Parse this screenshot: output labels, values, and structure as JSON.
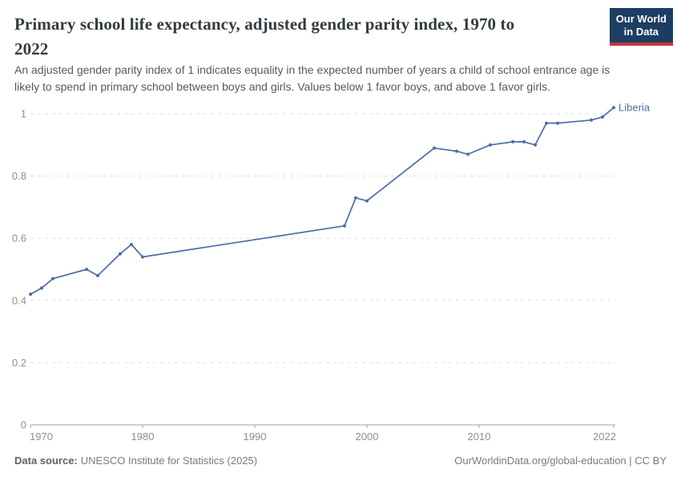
{
  "header": {
    "title_lines": [
      "Primary school life expectancy, adjusted gender parity index, 1970 to",
      "2022"
    ],
    "subtitle_lines": [
      "An adjusted gender parity index of 1 indicates equality in the expected number of years a child of school entrance age is",
      "likely to spend in primary school between boys and girls. Values below 1 favor boys, and above 1 favor girls."
    ],
    "logo": {
      "line1": "Our World",
      "line2": "in Data",
      "bg_color": "#1d3d63",
      "accent_color": "#c0363c"
    }
  },
  "footer": {
    "source_label": "Data source:",
    "source_text": "UNESCO Institute for Statistics (2025)",
    "credit": "OurWorldinData.org/global-education | CC BY"
  },
  "chart_data": {
    "type": "line",
    "title": "Primary school life expectancy, adjusted gender parity index, 1970 to 2022",
    "xlabel": "",
    "ylabel": "",
    "xlim": [
      1970,
      2022
    ],
    "ylim": [
      0,
      1.03
    ],
    "x_ticks": [
      1970,
      1980,
      1990,
      2000,
      2010,
      2022
    ],
    "y_ticks": [
      0,
      0.2,
      0.4,
      0.6,
      0.8,
      1
    ],
    "grid": "horizontal-dashed",
    "legend_position": "line-end-label",
    "colors": {
      "line": "#4c6cac",
      "grid": "#dedede",
      "axis": "#a1a1a1",
      "tick_text": "#8f8f8f"
    },
    "series": [
      {
        "name": "Liberia",
        "color": "#4c6cac",
        "points": [
          [
            1970,
            0.42
          ],
          [
            1971,
            0.44
          ],
          [
            1972,
            0.47
          ],
          [
            1975,
            0.5
          ],
          [
            1976,
            0.48
          ],
          [
            1978,
            0.55
          ],
          [
            1979,
            0.58
          ],
          [
            1980,
            0.54
          ],
          [
            1998,
            0.64
          ],
          [
            1999,
            0.73
          ],
          [
            2000,
            0.72
          ],
          [
            2006,
            0.89
          ],
          [
            2008,
            0.88
          ],
          [
            2009,
            0.87
          ],
          [
            2011,
            0.9
          ],
          [
            2013,
            0.91
          ],
          [
            2014,
            0.91
          ],
          [
            2015,
            0.9
          ],
          [
            2016,
            0.97
          ],
          [
            2017,
            0.97
          ],
          [
            2020,
            0.98
          ],
          [
            2021,
            0.99
          ],
          [
            2022,
            1.02
          ]
        ]
      }
    ]
  }
}
